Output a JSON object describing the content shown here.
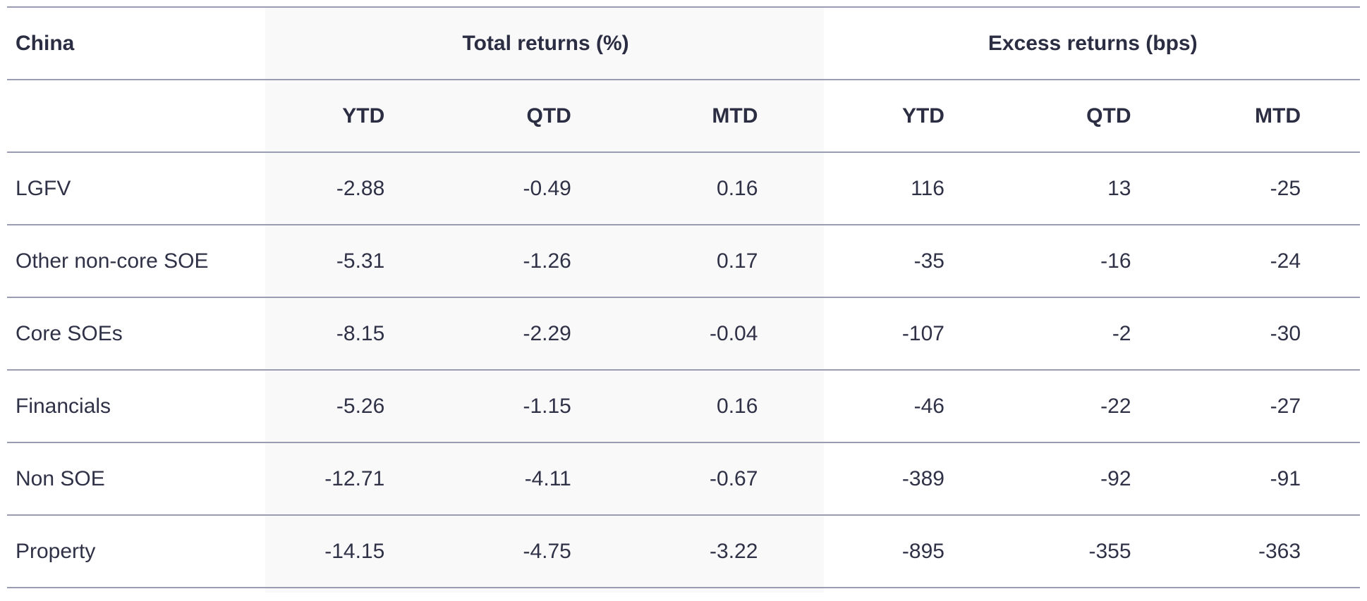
{
  "table": {
    "corner_label": "China",
    "groups": [
      "Total returns (%)",
      "Excess returns (bps)"
    ],
    "sub_headers": [
      "YTD",
      "QTD",
      "MTD",
      "YTD",
      "QTD",
      "MTD"
    ],
    "rows": [
      {
        "label": "LGFV",
        "values": [
          "-2.88",
          "-0.49",
          "0.16",
          "116",
          "13",
          "-25"
        ]
      },
      {
        "label": "Other non-core SOE",
        "values": [
          "-5.31",
          "-1.26",
          "0.17",
          "-35",
          "-16",
          "-24"
        ]
      },
      {
        "label": "Core SOEs",
        "values": [
          "-8.15",
          "-2.29",
          "-0.04",
          "-107",
          "-2",
          "-30"
        ]
      },
      {
        "label": "Financials",
        "values": [
          "-5.26",
          "-1.15",
          "0.16",
          "-46",
          "-22",
          "-27"
        ]
      },
      {
        "label": "Non SOE",
        "values": [
          "-12.71",
          "-4.11",
          "-0.67",
          "-389",
          "-92",
          "-91"
        ]
      },
      {
        "label": "Property",
        "values": [
          "-14.15",
          "-4.75",
          "-3.22",
          "-895",
          "-355",
          "-363"
        ]
      }
    ]
  },
  "colors": {
    "text": "#2b2d42",
    "rule": "#9a9cb2",
    "shaded_band": "#f9f9fa"
  }
}
